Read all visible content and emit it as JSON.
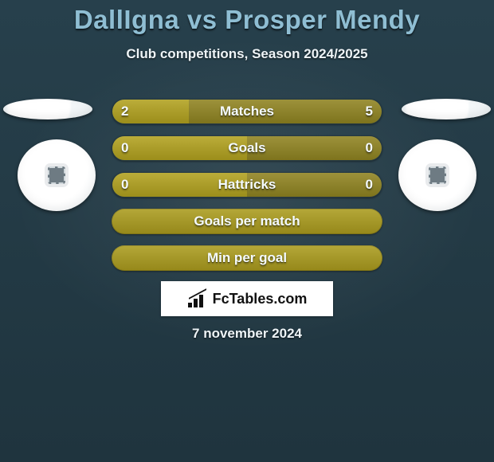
{
  "title": "DallIgna vs Prosper Mendy",
  "subtitle": "Club competitions, Season 2024/2025",
  "date": "7 november 2024",
  "brand": "FcTables.com",
  "colors": {
    "bar_left": "#b1a11e",
    "bar_right": "#8f8320",
    "bar_single": "#aa9b1d",
    "title": "#8fbed3"
  },
  "bars": [
    {
      "label": "Matches",
      "left": "2",
      "right": "5",
      "left_pct": 28.6,
      "right_pct": 71.4,
      "split": true
    },
    {
      "label": "Goals",
      "left": "0",
      "right": "0",
      "left_pct": 50,
      "right_pct": 50,
      "split": true
    },
    {
      "label": "Hattricks",
      "left": "0",
      "right": "0",
      "left_pct": 50,
      "right_pct": 50,
      "split": true
    },
    {
      "label": "Goals per match",
      "left": "",
      "right": "",
      "split": false
    },
    {
      "label": "Min per goal",
      "left": "",
      "right": "",
      "split": false
    }
  ]
}
